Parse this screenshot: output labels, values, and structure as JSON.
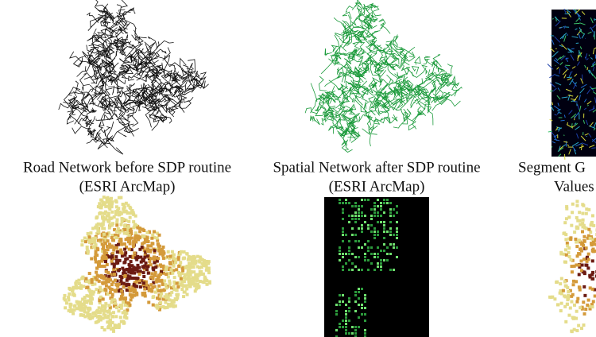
{
  "panels": [
    {
      "caption": [
        "Road Network before SDP routine",
        "(ESRI ArcMap)"
      ]
    },
    {
      "caption": [
        "Spatial Network after SDP routine",
        "(ESRI ArcMap)"
      ]
    },
    {
      "caption": [
        "Segment G",
        "Values"
      ]
    }
  ]
}
